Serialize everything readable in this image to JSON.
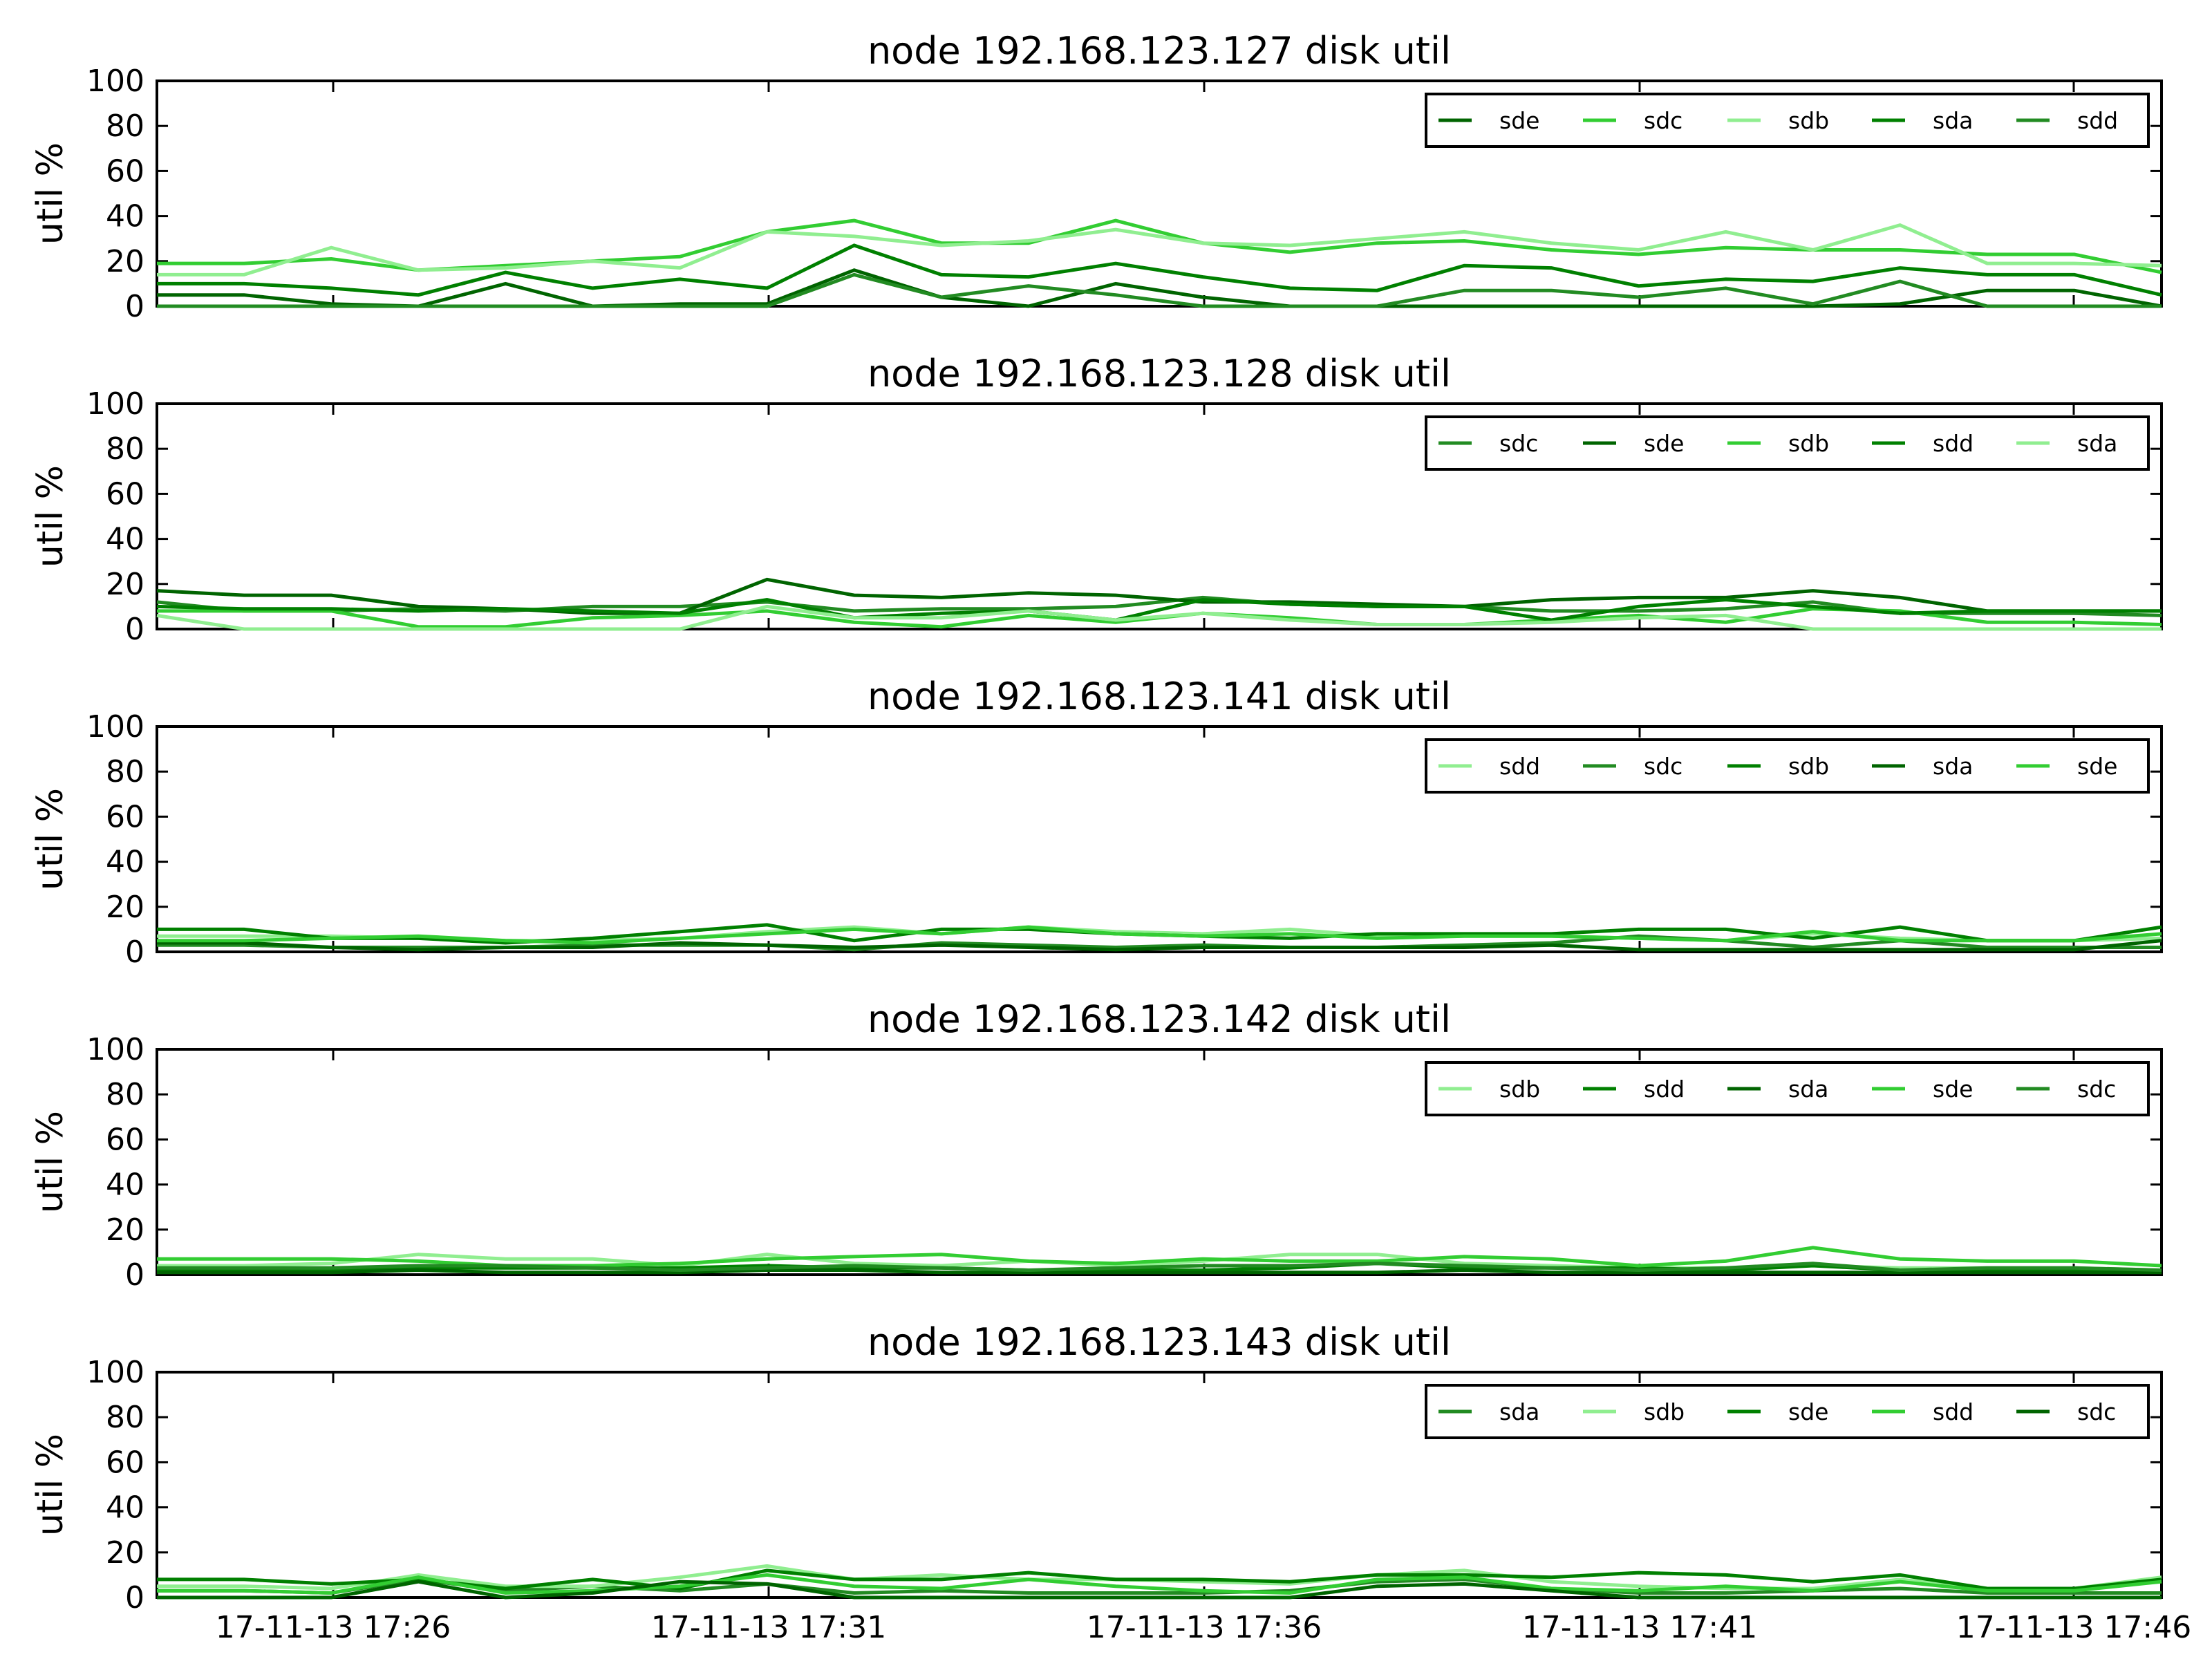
{
  "figure": {
    "x_ticks": [
      "17-11-13 17:26",
      "17-11-13 17:31",
      "17-11-13 17:36",
      "17-11-13 17:41",
      "17-11-13 17:46"
    ],
    "y_ticks": [
      "0",
      "20",
      "40",
      "60",
      "80",
      "100"
    ],
    "ylabel": "util %"
  },
  "chart_data": [
    {
      "type": "line",
      "title": "node 192.168.123.127 disk util",
      "xlabel": "",
      "ylabel": "util %",
      "ylim": [
        0,
        100
      ],
      "x": [
        "17:24",
        "17:25",
        "17:26",
        "17:27",
        "17:28",
        "17:29",
        "17:30",
        "17:31",
        "17:32",
        "17:33",
        "17:34",
        "17:35",
        "17:36",
        "17:37",
        "17:38",
        "17:39",
        "17:40",
        "17:41",
        "17:42",
        "17:43",
        "17:44",
        "17:45",
        "17:46",
        "17:47"
      ],
      "legend_position": "top-right",
      "grid": false,
      "series": [
        {
          "name": "sde",
          "color": "#006400",
          "values": [
            5,
            5,
            1,
            0,
            10,
            0,
            1,
            1,
            16,
            4,
            0,
            10,
            4,
            0,
            0,
            0,
            0,
            0,
            0,
            0,
            1,
            7,
            7,
            0
          ]
        },
        {
          "name": "sdc",
          "color": "#32cd32",
          "values": [
            19,
            19,
            21,
            16,
            18,
            20,
            22,
            33,
            38,
            28,
            28,
            38,
            28,
            24,
            28,
            29,
            25,
            23,
            26,
            25,
            25,
            23,
            23,
            15
          ]
        },
        {
          "name": "sdb",
          "color": "#90ee90",
          "values": [
            14,
            14,
            26,
            16,
            17,
            20,
            17,
            33,
            31,
            27,
            29,
            34,
            28,
            27,
            30,
            33,
            28,
            25,
            33,
            25,
            36,
            19,
            19,
            18
          ]
        },
        {
          "name": "sda",
          "color": "#008000",
          "values": [
            10,
            10,
            8,
            5,
            15,
            8,
            12,
            8,
            27,
            14,
            13,
            19,
            13,
            8,
            7,
            18,
            17,
            9,
            12,
            11,
            17,
            14,
            14,
            5
          ]
        },
        {
          "name": "sdd",
          "color": "#228b22",
          "values": [
            0,
            0,
            0,
            0,
            0,
            0,
            0,
            0,
            14,
            4,
            9,
            5,
            0,
            0,
            0,
            7,
            7,
            4,
            8,
            1,
            11,
            0,
            0,
            0
          ]
        }
      ]
    },
    {
      "type": "line",
      "title": "node 192.168.123.128 disk util",
      "xlabel": "",
      "ylabel": "util %",
      "ylim": [
        0,
        100
      ],
      "x": [
        "17:24",
        "17:25",
        "17:26",
        "17:27",
        "17:28",
        "17:29",
        "17:30",
        "17:31",
        "17:32",
        "17:33",
        "17:34",
        "17:35",
        "17:36",
        "17:37",
        "17:38",
        "17:39",
        "17:40",
        "17:41",
        "17:42",
        "17:43",
        "17:44",
        "17:45",
        "17:46",
        "17:47"
      ],
      "legend_position": "top-right",
      "grid": false,
      "series": [
        {
          "name": "sdc",
          "color": "#228b22",
          "values": [
            12,
            8,
            8,
            9,
            8,
            10,
            10,
            12,
            8,
            9,
            9,
            10,
            14,
            11,
            10,
            10,
            8,
            8,
            9,
            12,
            7,
            7,
            7,
            6
          ]
        },
        {
          "name": "sde",
          "color": "#006400",
          "values": [
            17,
            15,
            15,
            10,
            9,
            7,
            7,
            22,
            15,
            14,
            16,
            15,
            12,
            12,
            11,
            10,
            13,
            14,
            14,
            17,
            14,
            8,
            8,
            8
          ]
        },
        {
          "name": "sdb",
          "color": "#32cd32",
          "values": [
            8,
            8,
            8,
            1,
            1,
            5,
            6,
            8,
            3,
            1,
            6,
            3,
            7,
            5,
            2,
            2,
            4,
            6,
            3,
            9,
            8,
            3,
            3,
            2
          ]
        },
        {
          "name": "sdd",
          "color": "#008000",
          "values": [
            10,
            9,
            9,
            8,
            9,
            8,
            7,
            13,
            5,
            7,
            8,
            4,
            13,
            11,
            10,
            10,
            4,
            10,
            13,
            10,
            7,
            8,
            8,
            8
          ]
        },
        {
          "name": "sda",
          "color": "#90ee90",
          "values": [
            6,
            0,
            0,
            0,
            0,
            0,
            0,
            10,
            5,
            5,
            8,
            4,
            7,
            4,
            2,
            2,
            3,
            5,
            6,
            0,
            0,
            0,
            0,
            0
          ]
        }
      ]
    },
    {
      "type": "line",
      "title": "node 192.168.123.141 disk util",
      "xlabel": "",
      "ylabel": "util %",
      "ylim": [
        0,
        100
      ],
      "x": [
        "17:24",
        "17:25",
        "17:26",
        "17:27",
        "17:28",
        "17:29",
        "17:30",
        "17:31",
        "17:32",
        "17:33",
        "17:34",
        "17:35",
        "17:36",
        "17:37",
        "17:38",
        "17:39",
        "17:40",
        "17:41",
        "17:42",
        "17:43",
        "17:44",
        "17:45",
        "17:46",
        "17:47"
      ],
      "legend_position": "top-right",
      "grid": false,
      "series": [
        {
          "name": "sdd",
          "color": "#90ee90",
          "values": [
            7,
            7,
            7,
            6,
            5,
            5,
            6,
            9,
            11,
            8,
            11,
            9,
            8,
            10,
            7,
            7,
            7,
            6,
            5,
            8,
            6,
            5,
            5,
            6
          ]
        },
        {
          "name": "sdc",
          "color": "#228b22",
          "values": [
            3,
            3,
            2,
            2,
            2,
            3,
            3,
            3,
            1,
            4,
            3,
            2,
            3,
            2,
            2,
            3,
            4,
            7,
            5,
            2,
            5,
            2,
            2,
            2
          ]
        },
        {
          "name": "sdb",
          "color": "#008000",
          "values": [
            10,
            10,
            6,
            6,
            4,
            6,
            9,
            12,
            5,
            10,
            10,
            8,
            7,
            6,
            8,
            8,
            8,
            10,
            10,
            6,
            11,
            5,
            5,
            11
          ]
        },
        {
          "name": "sda",
          "color": "#006400",
          "values": [
            4,
            4,
            2,
            1,
            2,
            2,
            4,
            3,
            2,
            3,
            2,
            1,
            2,
            2,
            2,
            2,
            3,
            1,
            1,
            1,
            1,
            1,
            1,
            5
          ]
        },
        {
          "name": "sde",
          "color": "#32cd32",
          "values": [
            5,
            5,
            6,
            7,
            5,
            4,
            6,
            8,
            10,
            8,
            11,
            8,
            7,
            8,
            6,
            7,
            7,
            6,
            5,
            9,
            5,
            5,
            5,
            8
          ]
        }
      ]
    },
    {
      "type": "line",
      "title": "node 192.168.123.142 disk util",
      "xlabel": "",
      "ylabel": "util %",
      "ylim": [
        0,
        100
      ],
      "x": [
        "17:24",
        "17:25",
        "17:26",
        "17:27",
        "17:28",
        "17:29",
        "17:30",
        "17:31",
        "17:32",
        "17:33",
        "17:34",
        "17:35",
        "17:36",
        "17:37",
        "17:38",
        "17:39",
        "17:40",
        "17:41",
        "17:42",
        "17:43",
        "17:44",
        "17:45",
        "17:46",
        "17:47"
      ],
      "legend_position": "top-right",
      "grid": false,
      "series": [
        {
          "name": "sdb",
          "color": "#90ee90",
          "values": [
            4,
            4,
            5,
            9,
            7,
            7,
            4,
            9,
            5,
            4,
            6,
            4,
            6,
            9,
            9,
            5,
            4,
            3,
            3,
            4,
            3,
            3,
            3,
            2
          ]
        },
        {
          "name": "sdd",
          "color": "#008000",
          "values": [
            2,
            2,
            2,
            3,
            3,
            3,
            3,
            4,
            3,
            3,
            2,
            2,
            2,
            3,
            5,
            3,
            3,
            3,
            2,
            4,
            2,
            2,
            2,
            2
          ]
        },
        {
          "name": "sda",
          "color": "#006400",
          "values": [
            1,
            1,
            1,
            2,
            1,
            1,
            1,
            2,
            2,
            1,
            1,
            1,
            1,
            1,
            1,
            2,
            1,
            1,
            1,
            1,
            1,
            1,
            1,
            1
          ]
        },
        {
          "name": "sde",
          "color": "#32cd32",
          "values": [
            7,
            7,
            7,
            6,
            4,
            4,
            5,
            7,
            8,
            9,
            6,
            5,
            7,
            6,
            6,
            8,
            7,
            4,
            6,
            12,
            7,
            6,
            6,
            4
          ]
        },
        {
          "name": "sdc",
          "color": "#228b22",
          "values": [
            3,
            3,
            3,
            4,
            4,
            3,
            2,
            3,
            4,
            3,
            2,
            3,
            4,
            4,
            5,
            4,
            3,
            2,
            3,
            5,
            2,
            3,
            3,
            2
          ]
        }
      ]
    },
    {
      "type": "line",
      "title": "node 192.168.123.143 disk util",
      "xlabel": "",
      "ylabel": "util %",
      "ylim": [
        0,
        100
      ],
      "x": [
        "17:24",
        "17:25",
        "17:26",
        "17:27",
        "17:28",
        "17:29",
        "17:30",
        "17:31",
        "17:32",
        "17:33",
        "17:34",
        "17:35",
        "17:36",
        "17:37",
        "17:38",
        "17:39",
        "17:40",
        "17:41",
        "17:42",
        "17:43",
        "17:44",
        "17:45",
        "17:46",
        "17:47"
      ],
      "legend_position": "top-right",
      "grid": false,
      "series": [
        {
          "name": "sda",
          "color": "#228b22",
          "values": [
            3,
            3,
            2,
            8,
            3,
            5,
            3,
            6,
            2,
            3,
            2,
            2,
            2,
            3,
            7,
            8,
            4,
            2,
            2,
            3,
            4,
            2,
            2,
            2
          ]
        },
        {
          "name": "sdb",
          "color": "#90ee90",
          "values": [
            5,
            5,
            4,
            10,
            5,
            5,
            9,
            14,
            8,
            10,
            8,
            8,
            7,
            6,
            10,
            12,
            7,
            5,
            4,
            4,
            8,
            4,
            4,
            9
          ]
        },
        {
          "name": "sde",
          "color": "#008000",
          "values": [
            8,
            8,
            6,
            8,
            4,
            8,
            4,
            12,
            8,
            8,
            11,
            8,
            8,
            7,
            10,
            10,
            9,
            11,
            10,
            7,
            10,
            4,
            4,
            8
          ]
        },
        {
          "name": "sdd",
          "color": "#32cd32",
          "values": [
            3,
            3,
            2,
            9,
            2,
            3,
            5,
            10,
            5,
            4,
            8,
            5,
            3,
            2,
            8,
            9,
            4,
            3,
            5,
            3,
            7,
            3,
            3,
            7
          ]
        },
        {
          "name": "sdc",
          "color": "#006400",
          "values": [
            0,
            0,
            0,
            7,
            0,
            2,
            7,
            6,
            0,
            0,
            0,
            0,
            0,
            0,
            5,
            6,
            3,
            0,
            0,
            0,
            0,
            0,
            0,
            0
          ]
        }
      ]
    }
  ]
}
